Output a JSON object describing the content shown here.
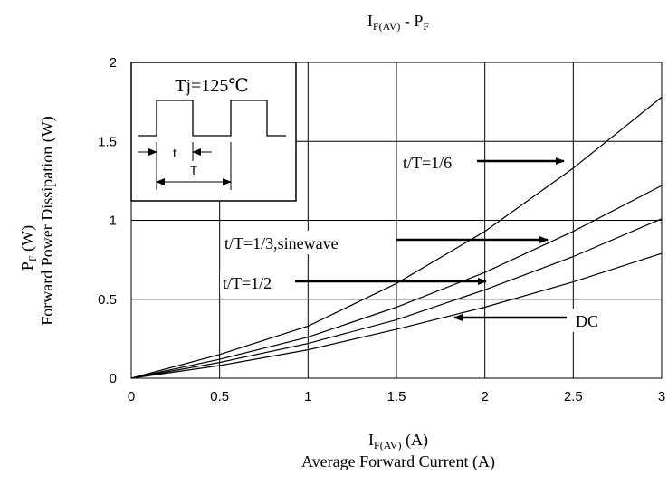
{
  "chart_data": {
    "type": "line",
    "title_main": "I",
    "title_sub": "F(AV)",
    "title_mid": " - P",
    "title_sub2": "F",
    "xlabel_main": "I",
    "xlabel_sub": "F(AV)",
    "xlabel_unit": " (A)",
    "xlabel_desc": "Average Forward Current (A)",
    "ylabel_main": "P",
    "ylabel_sub": "F",
    "ylabel_unit": " (W)",
    "ylabel_desc": "Forward Power Dissipation (W)",
    "xlim": [
      0,
      3
    ],
    "ylim": [
      0,
      2
    ],
    "xticks": [
      {
        "value": 0,
        "label": "0"
      },
      {
        "value": 0.5,
        "label": "0.5"
      },
      {
        "value": 1,
        "label": "1"
      },
      {
        "value": 1.5,
        "label": "1.5"
      },
      {
        "value": 2,
        "label": "2"
      },
      {
        "value": 2.5,
        "label": "2.5"
      },
      {
        "value": 3,
        "label": "3"
      }
    ],
    "yticks": [
      {
        "value": 0,
        "label": "0"
      },
      {
        "value": 0.5,
        "label": "0.5"
      },
      {
        "value": 1,
        "label": "1"
      },
      {
        "value": 1.5,
        "label": "1.5"
      },
      {
        "value": 2,
        "label": "2"
      }
    ],
    "grid": true,
    "series": [
      {
        "name": "t/T=1/6",
        "x": [
          0,
          0.5,
          1,
          1.5,
          2,
          2.5,
          3
        ],
        "y": [
          0,
          0.15,
          0.33,
          0.6,
          0.93,
          1.33,
          1.78
        ]
      },
      {
        "name": "t/T=1/3,sinewave",
        "x": [
          0,
          0.5,
          1,
          1.5,
          2,
          2.5,
          3
        ],
        "y": [
          0,
          0.12,
          0.26,
          0.45,
          0.67,
          0.93,
          1.22
        ]
      },
      {
        "name": "t/T=1/2",
        "x": [
          0,
          0.5,
          1,
          1.5,
          2,
          2.5,
          3
        ],
        "y": [
          0,
          0.1,
          0.22,
          0.37,
          0.56,
          0.77,
          1.01
        ]
      },
      {
        "name": "DC",
        "x": [
          0,
          0.5,
          1,
          1.5,
          2,
          2.5,
          3
        ],
        "y": [
          0,
          0.08,
          0.18,
          0.31,
          0.45,
          0.61,
          0.79
        ]
      }
    ],
    "annotations": [
      {
        "text": "t/T=1/6",
        "points_to": {
          "x": 2.5,
          "y": 1.37
        }
      },
      {
        "text": "t/T=1/3,sinewave",
        "points_to": {
          "x": 2.35,
          "y": 0.88
        }
      },
      {
        "text": "t/T=1/2",
        "points_to": {
          "x": 2.0,
          "y": 0.68
        }
      },
      {
        "text": "DC",
        "points_to": {
          "x": 1.8,
          "y": 0.44
        }
      }
    ],
    "inset": {
      "label": "Tj=125℃",
      "t_label": "t",
      "T_label": "T"
    }
  }
}
